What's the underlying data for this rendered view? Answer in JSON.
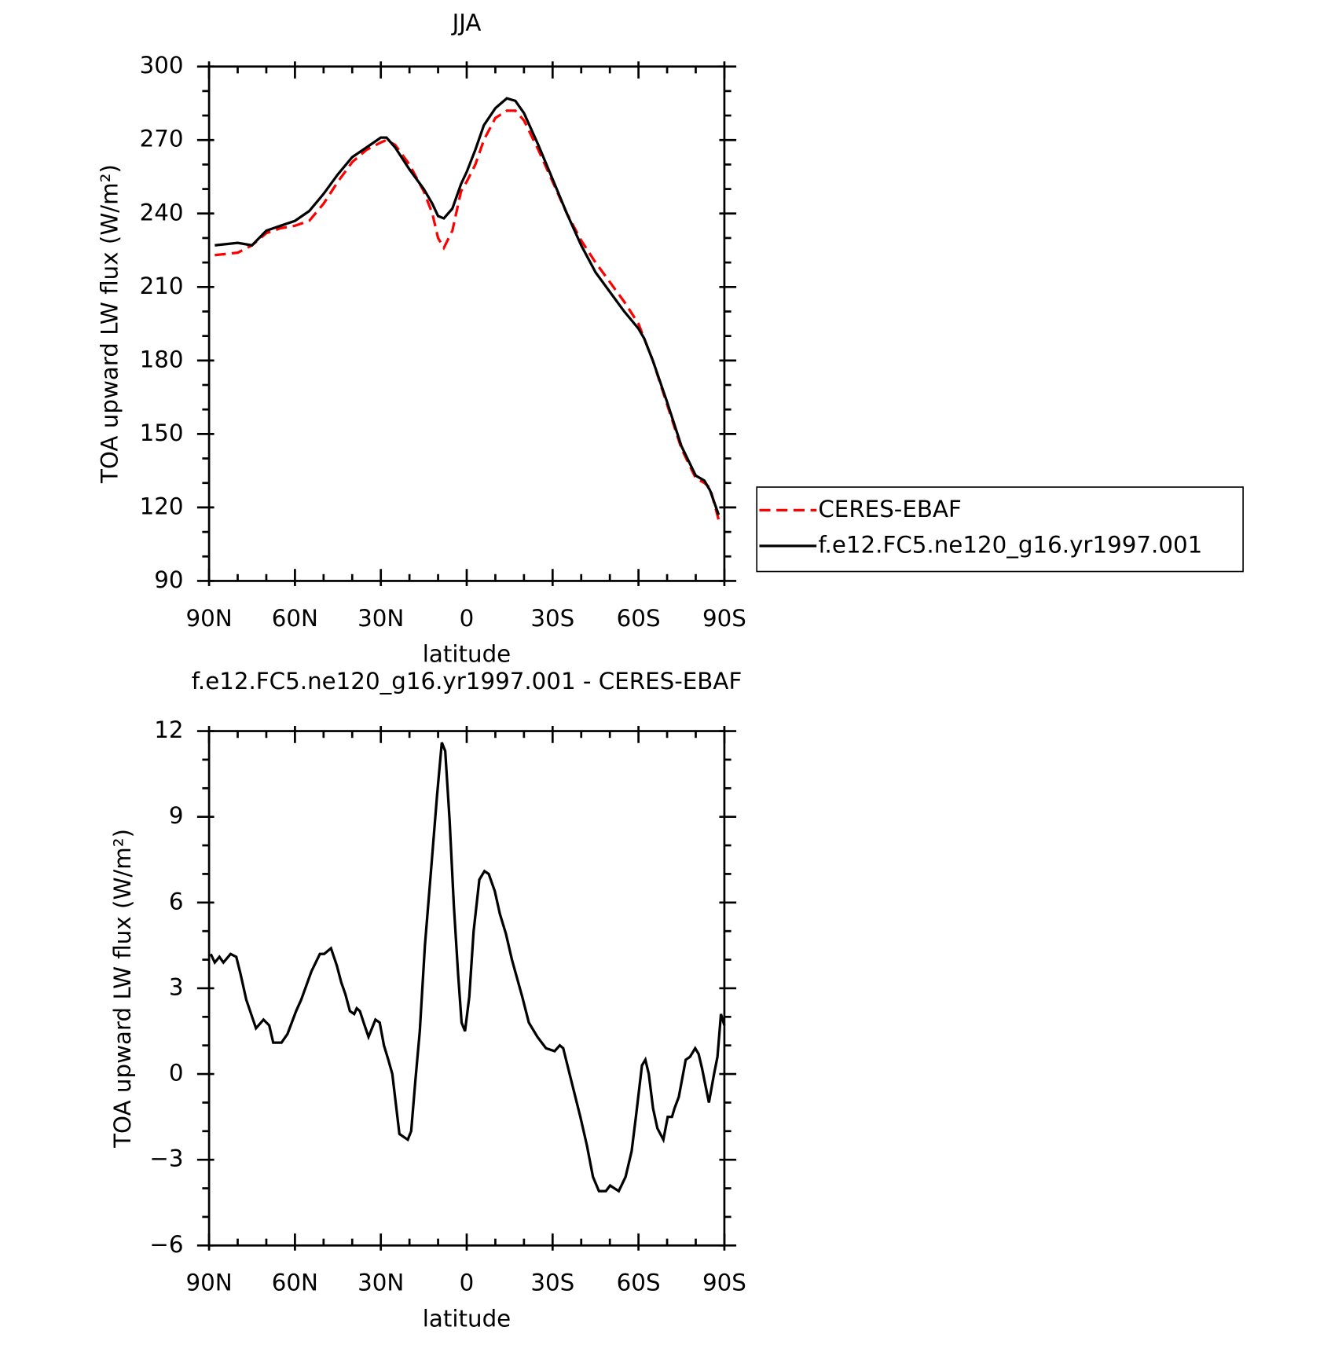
{
  "chart_data": [
    {
      "type": "line",
      "title": "JJA",
      "xlabel": "latitude",
      "ylabel": "TOA upward LW flux (W/m²)",
      "xlim": [
        90,
        -90
      ],
      "xticks": [
        {
          "value": 90,
          "label": "90N"
        },
        {
          "value": 60,
          "label": "60N"
        },
        {
          "value": 30,
          "label": "30N"
        },
        0,
        {
          "value": -30,
          "label": "30S"
        },
        {
          "value": -60,
          "label": "60S"
        },
        {
          "value": -90,
          "label": "90S"
        }
      ],
      "ylim": [
        90,
        300
      ],
      "yticks": [
        90,
        120,
        150,
        180,
        210,
        240,
        270,
        300
      ],
      "legend": "right",
      "x": [
        88,
        80,
        75,
        70,
        65,
        60,
        55,
        50,
        45,
        40,
        35,
        30,
        28,
        25,
        20,
        15,
        12,
        10,
        8,
        5,
        2,
        0,
        -3,
        -6,
        -10,
        -14,
        -17,
        -20,
        -25,
        -30,
        -35,
        -40,
        -45,
        -50,
        -55,
        -60,
        -62,
        -65,
        -70,
        -75,
        -80,
        -83,
        -85,
        -88
      ],
      "series": [
        {
          "name": "CERES-EBAF",
          "color": "#ff0000",
          "line_style": "dashed",
          "values": [
            223,
            224,
            227,
            232,
            234,
            235,
            237,
            244,
            253,
            261,
            266,
            269,
            270,
            268,
            260,
            249,
            240,
            230,
            226,
            233,
            249,
            253,
            260,
            270,
            279,
            282,
            282,
            278,
            266,
            253,
            240,
            229,
            220,
            212,
            204,
            195,
            189,
            180,
            162,
            144,
            132,
            130,
            128,
            115
          ]
        },
        {
          "name": "f.e12.FC5.ne120_g16.yr1997.001",
          "color": "#000000",
          "line_style": "solid",
          "values": [
            227,
            228,
            227,
            233,
            235,
            237,
            241,
            248,
            256,
            263,
            267,
            271,
            271,
            267,
            258,
            250,
            244,
            239,
            238,
            242,
            252,
            257,
            266,
            276,
            283,
            287,
            286,
            281,
            268,
            254,
            240,
            227,
            216,
            208,
            200,
            193,
            189,
            180,
            163,
            145,
            133,
            131,
            127,
            117
          ]
        }
      ]
    },
    {
      "type": "line",
      "title": "f.e12.FC5.ne120_g16.yr1997.001 - CERES-EBAF",
      "xlabel": "latitude",
      "ylabel": "TOA upward LW flux (W/m²)",
      "xlim": [
        90,
        -90
      ],
      "xticks": [
        {
          "value": 90,
          "label": "90N"
        },
        {
          "value": 60,
          "label": "60N"
        },
        {
          "value": 30,
          "label": "30N"
        },
        0,
        {
          "value": -30,
          "label": "30S"
        },
        {
          "value": -60,
          "label": "60S"
        },
        {
          "value": -90,
          "label": "90S"
        }
      ],
      "ylim": [
        -6,
        12
      ],
      "yticks": [
        {
          "value": -6,
          "label": "−6"
        },
        {
          "value": -3,
          "label": "−3"
        },
        0,
        3,
        6,
        9,
        12
      ],
      "x": [
        89.4,
        88,
        86.4,
        85,
        82.5,
        80.5,
        79,
        77,
        73.6,
        71,
        69,
        67.6,
        64.7,
        62.6,
        59.6,
        57.8,
        54.2,
        51.3,
        49.8,
        47.4,
        45.4,
        43.8,
        42.4,
        40.8,
        39.3,
        38.4,
        37.3,
        36,
        34.3,
        31.9,
        30.4,
        28.9,
        27.4,
        26,
        23.5,
        20.6,
        19.4,
        17.9,
        16.4,
        14.6,
        12.5,
        10.4,
        8.7,
        7.5,
        6,
        4.5,
        3,
        1.8,
        0.6,
        -0.9,
        -2.4,
        -4.4,
        -6.2,
        -7.7,
        -9.8,
        -11.6,
        -13.7,
        -15.8,
        -19.4,
        -21.7,
        -24.7,
        -27.7,
        -30.7,
        -32.5,
        -33.7,
        -36.7,
        -39.7,
        -42,
        -44.1,
        -46.2,
        -48.6,
        -50.1,
        -51.6,
        -53.1,
        -55.5,
        -57.6,
        -59.1,
        -61.2,
        -62.4,
        -63.6,
        -65.1,
        -66.6,
        -68.7,
        -70.2,
        -71.7,
        -72.6,
        -74.1,
        -76.5,
        -78,
        -79.8,
        -81,
        -82.2,
        -84.6,
        -86.4,
        -87.6,
        -88.8,
        -90
      ],
      "series": [
        {
          "color": "#000000",
          "line_style": "solid",
          "values": [
            4.2,
            3.9,
            4.1,
            3.9,
            4.2,
            4.1,
            3.5,
            2.6,
            1.6,
            1.9,
            1.7,
            1.1,
            1.1,
            1.4,
            2.2,
            2.6,
            3.6,
            4.2,
            4.2,
            4.4,
            3.8,
            3.2,
            2.8,
            2.2,
            2.1,
            2.3,
            2.2,
            1.8,
            1.3,
            1.9,
            1.8,
            1.0,
            0.5,
            0,
            -2.1,
            -2.3,
            -2,
            -0.2,
            1.5,
            4.5,
            7.1,
            9.7,
            11.6,
            11.3,
            8.9,
            5.9,
            3.5,
            1.8,
            1.5,
            2.7,
            5.0,
            6.8,
            7.1,
            7.0,
            6.4,
            5.6,
            4.9,
            4.0,
            2.7,
            1.8,
            1.3,
            0.9,
            0.8,
            1.0,
            0.9,
            -0.3,
            -1.5,
            -2.5,
            -3.6,
            -4.1,
            -4.1,
            -3.9,
            -4.0,
            -4.1,
            -3.6,
            -2.7,
            -1.5,
            0.3,
            0.5,
            0.0,
            -1.2,
            -1.9,
            -2.3,
            -1.5,
            -1.5,
            -1.2,
            -0.8,
            0.5,
            0.6,
            0.9,
            0.7,
            0.2,
            -1.0,
            0,
            0.6,
            2.1,
            1.7
          ]
        }
      ]
    }
  ]
}
